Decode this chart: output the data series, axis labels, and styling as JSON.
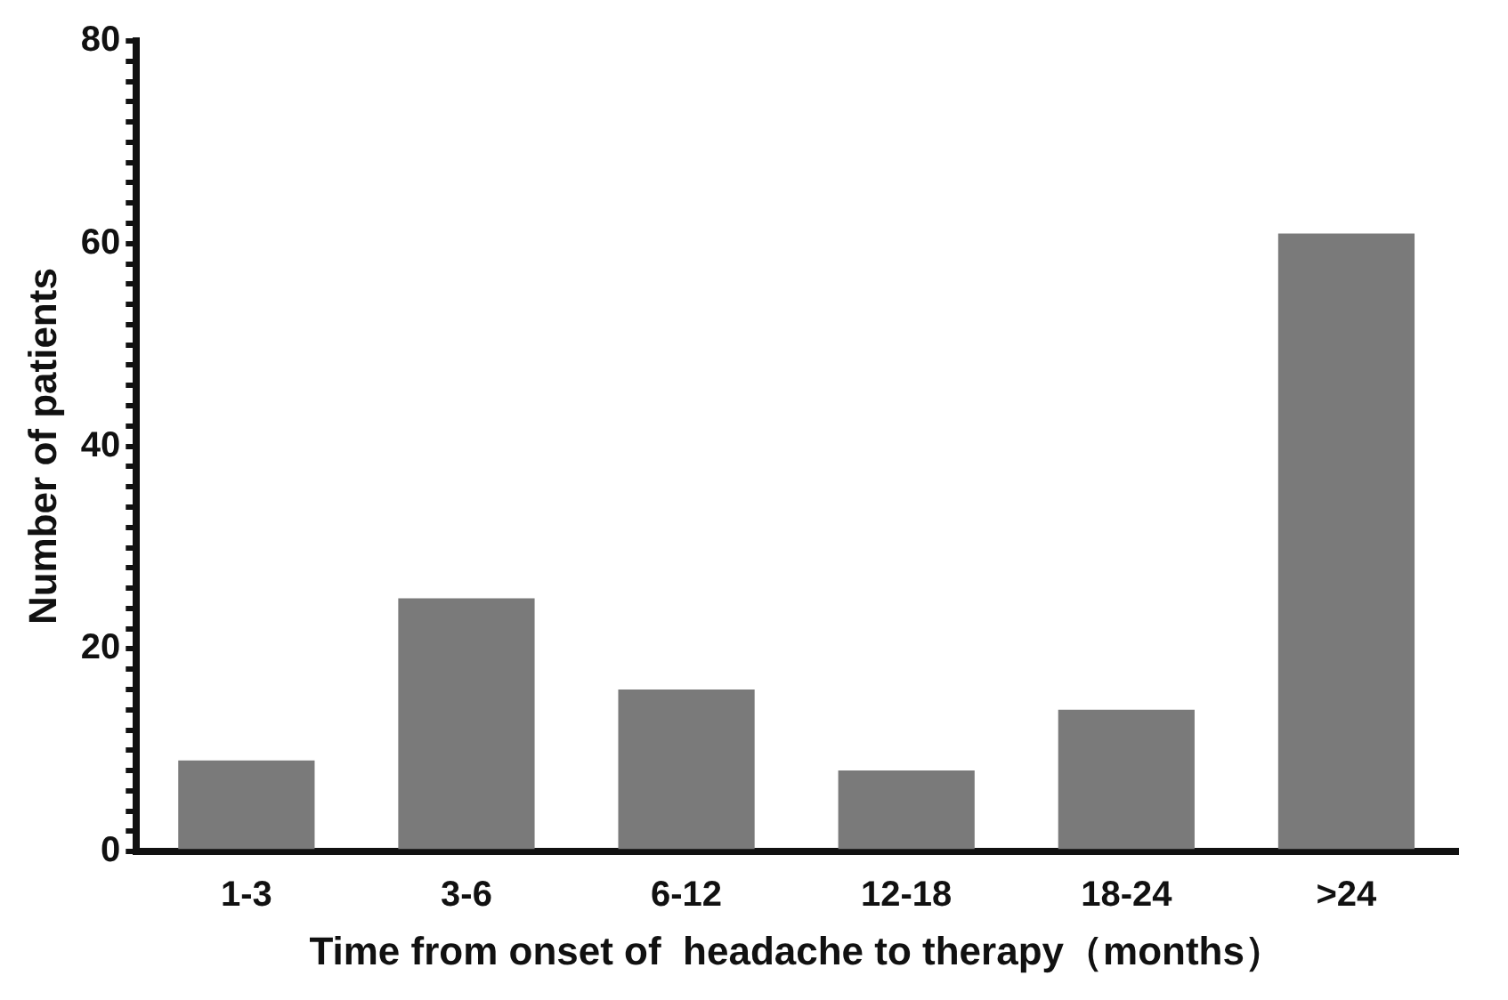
{
  "chart_data": {
    "type": "bar",
    "xlabel": "Time from onset of  headache to therapy（months）",
    "ylabel": "Number of patients",
    "categories": [
      "1-3",
      "3-6",
      "6-12",
      "12-18",
      "18-24",
      ">24"
    ],
    "values": [
      9,
      25,
      16,
      8,
      14,
      61
    ],
    "color": "#7a7a7a",
    "ylim": [
      0,
      80
    ],
    "yticks": [
      0,
      {
        "value": 2,
        "label": null
      },
      {
        "value": 4,
        "label": null
      },
      {
        "value": 6,
        "label": null
      },
      {
        "value": 8,
        "label": null
      },
      {
        "value": 10,
        "label": null
      },
      {
        "value": 12,
        "label": null
      },
      {
        "value": 14,
        "label": null
      },
      {
        "value": 16,
        "label": null
      },
      {
        "value": 18,
        "label": null
      },
      20,
      {
        "value": 22,
        "label": null
      },
      {
        "value": 24,
        "label": null
      },
      {
        "value": 26,
        "label": null
      },
      {
        "value": 28,
        "label": null
      },
      {
        "value": 30,
        "label": null
      },
      {
        "value": 32,
        "label": null
      },
      {
        "value": 34,
        "label": null
      },
      {
        "value": 36,
        "label": null
      },
      {
        "value": 38,
        "label": null
      },
      40,
      {
        "value": 42,
        "label": null
      },
      {
        "value": 44,
        "label": null
      },
      {
        "value": 46,
        "label": null
      },
      {
        "value": 48,
        "label": null
      },
      {
        "value": 50,
        "label": null
      },
      {
        "value": 52,
        "label": null
      },
      {
        "value": 54,
        "label": null
      },
      {
        "value": 56,
        "label": null
      },
      {
        "value": 58,
        "label": null
      },
      60,
      {
        "value": 62,
        "label": null
      },
      {
        "value": 64,
        "label": null
      },
      {
        "value": 66,
        "label": null
      },
      {
        "value": 68,
        "label": null
      },
      {
        "value": 70,
        "label": null
      },
      {
        "value": 72,
        "label": null
      },
      {
        "value": 74,
        "label": null
      },
      {
        "value": 76,
        "label": null
      },
      {
        "value": 78,
        "label": null
      },
      80
    ],
    "grid": false,
    "legend": false
  }
}
